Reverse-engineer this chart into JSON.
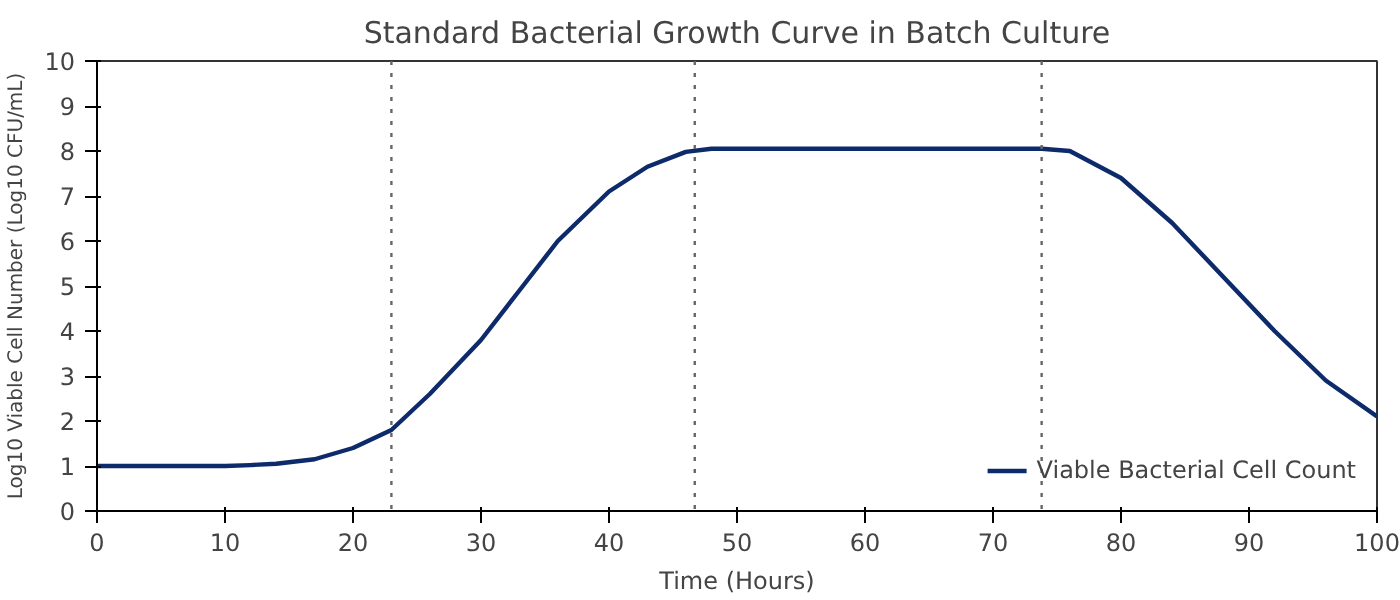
{
  "chart_data": {
    "type": "line",
    "title": "Standard Bacterial Growth Curve in Batch Culture",
    "xlabel": "Time (Hours)",
    "ylabel": "Log10 Viable Cell Number (Log10 CFU/mL)",
    "x": [
      0,
      5,
      10,
      12,
      14,
      17,
      20,
      23,
      26,
      30,
      33,
      36,
      40,
      43,
      46,
      48,
      55,
      65,
      73.8,
      76,
      80,
      84,
      88,
      92,
      96,
      100
    ],
    "series": [
      {
        "name": "Viable Bacterial Cell Count",
        "color": "#0d2a6b",
        "values": [
          1,
          1,
          1,
          1.02,
          1.05,
          1.15,
          1.4,
          1.8,
          2.6,
          3.8,
          4.9,
          6.0,
          7.1,
          7.65,
          7.98,
          8.05,
          8.05,
          8.05,
          8.05,
          8.0,
          7.4,
          6.4,
          5.2,
          4.0,
          2.9,
          2.1
        ]
      }
    ],
    "xlim": [
      0,
      100
    ],
    "ylim": [
      0,
      10
    ],
    "xticks": [
      0,
      10,
      20,
      30,
      40,
      50,
      60,
      70,
      80,
      90,
      100
    ],
    "yticks": [
      0,
      1,
      2,
      3,
      4,
      5,
      6,
      7,
      8,
      9,
      10
    ],
    "ref_lines": [
      {
        "axis": "x",
        "value": 23,
        "color": "#666666",
        "line_style": "dotted"
      },
      {
        "axis": "x",
        "value": 46.7,
        "color": "#666666",
        "line_style": "dotted"
      },
      {
        "axis": "x",
        "value": 73.8,
        "color": "#666666",
        "line_style": "dotted"
      }
    ],
    "legend": "bottom right",
    "grid": false,
    "line_style": "solid",
    "marker": "none"
  }
}
